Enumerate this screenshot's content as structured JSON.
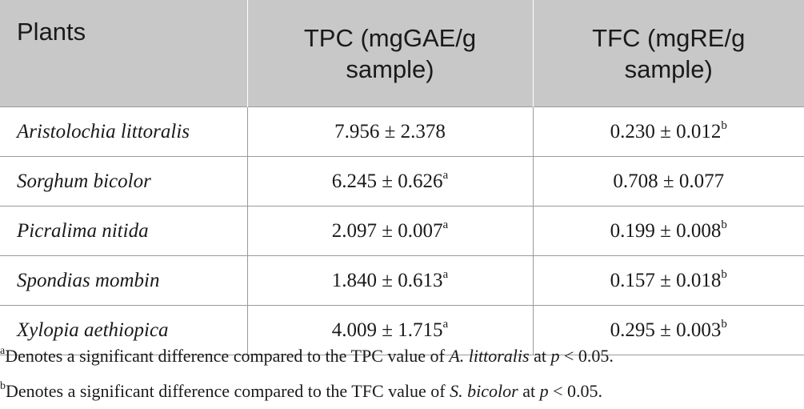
{
  "table": {
    "headers": {
      "plants": "Plants",
      "tpc_line1": "TPC (mgGAE/g",
      "tpc_line2": "sample)",
      "tfc_line1": "TFC (mgRE/g",
      "tfc_line2": "sample)"
    },
    "rows": [
      {
        "plant": "Aristolochia littoralis",
        "tpc": "7.956 ± 2.378",
        "tpc_sup": "",
        "tfc": "0.230 ± 0.012",
        "tfc_sup": "b"
      },
      {
        "plant": "Sorghum bicolor",
        "tpc": "6.245 ± 0.626",
        "tpc_sup": "a",
        "tfc": "0.708 ± 0.077",
        "tfc_sup": ""
      },
      {
        "plant": "Picralima nitida",
        "tpc": "2.097 ± 0.007",
        "tpc_sup": "a",
        "tfc": "0.199 ± 0.008",
        "tfc_sup": "b"
      },
      {
        "plant": "Spondias mombin",
        "tpc": "1.840 ± 0.613",
        "tpc_sup": "a",
        "tfc": "0.157 ± 0.018",
        "tfc_sup": "b"
      },
      {
        "plant": "Xylopia aethiopica",
        "tpc": "4.009 ± 1.715",
        "tpc_sup": "a",
        "tfc": "0.295 ± 0.003",
        "tfc_sup": "b"
      }
    ]
  },
  "footnotes": {
    "a": {
      "mark": "a",
      "text_before": "Denotes a significant difference compared to the TPC value of ",
      "species": "A. littoralis",
      "text_mid": " at ",
      "pvar": "p",
      "text_after": " < 0.05."
    },
    "b": {
      "mark": "b",
      "text_before": "Denotes a significant difference compared to the TFC value of ",
      "species": "S. bicolor",
      "text_mid": " at ",
      "pvar": "p",
      "text_after": " < 0.05."
    }
  },
  "colors": {
    "header_bg": "#c8c8c8",
    "rule": "#9a9a9a",
    "text": "#1a1a1a"
  }
}
